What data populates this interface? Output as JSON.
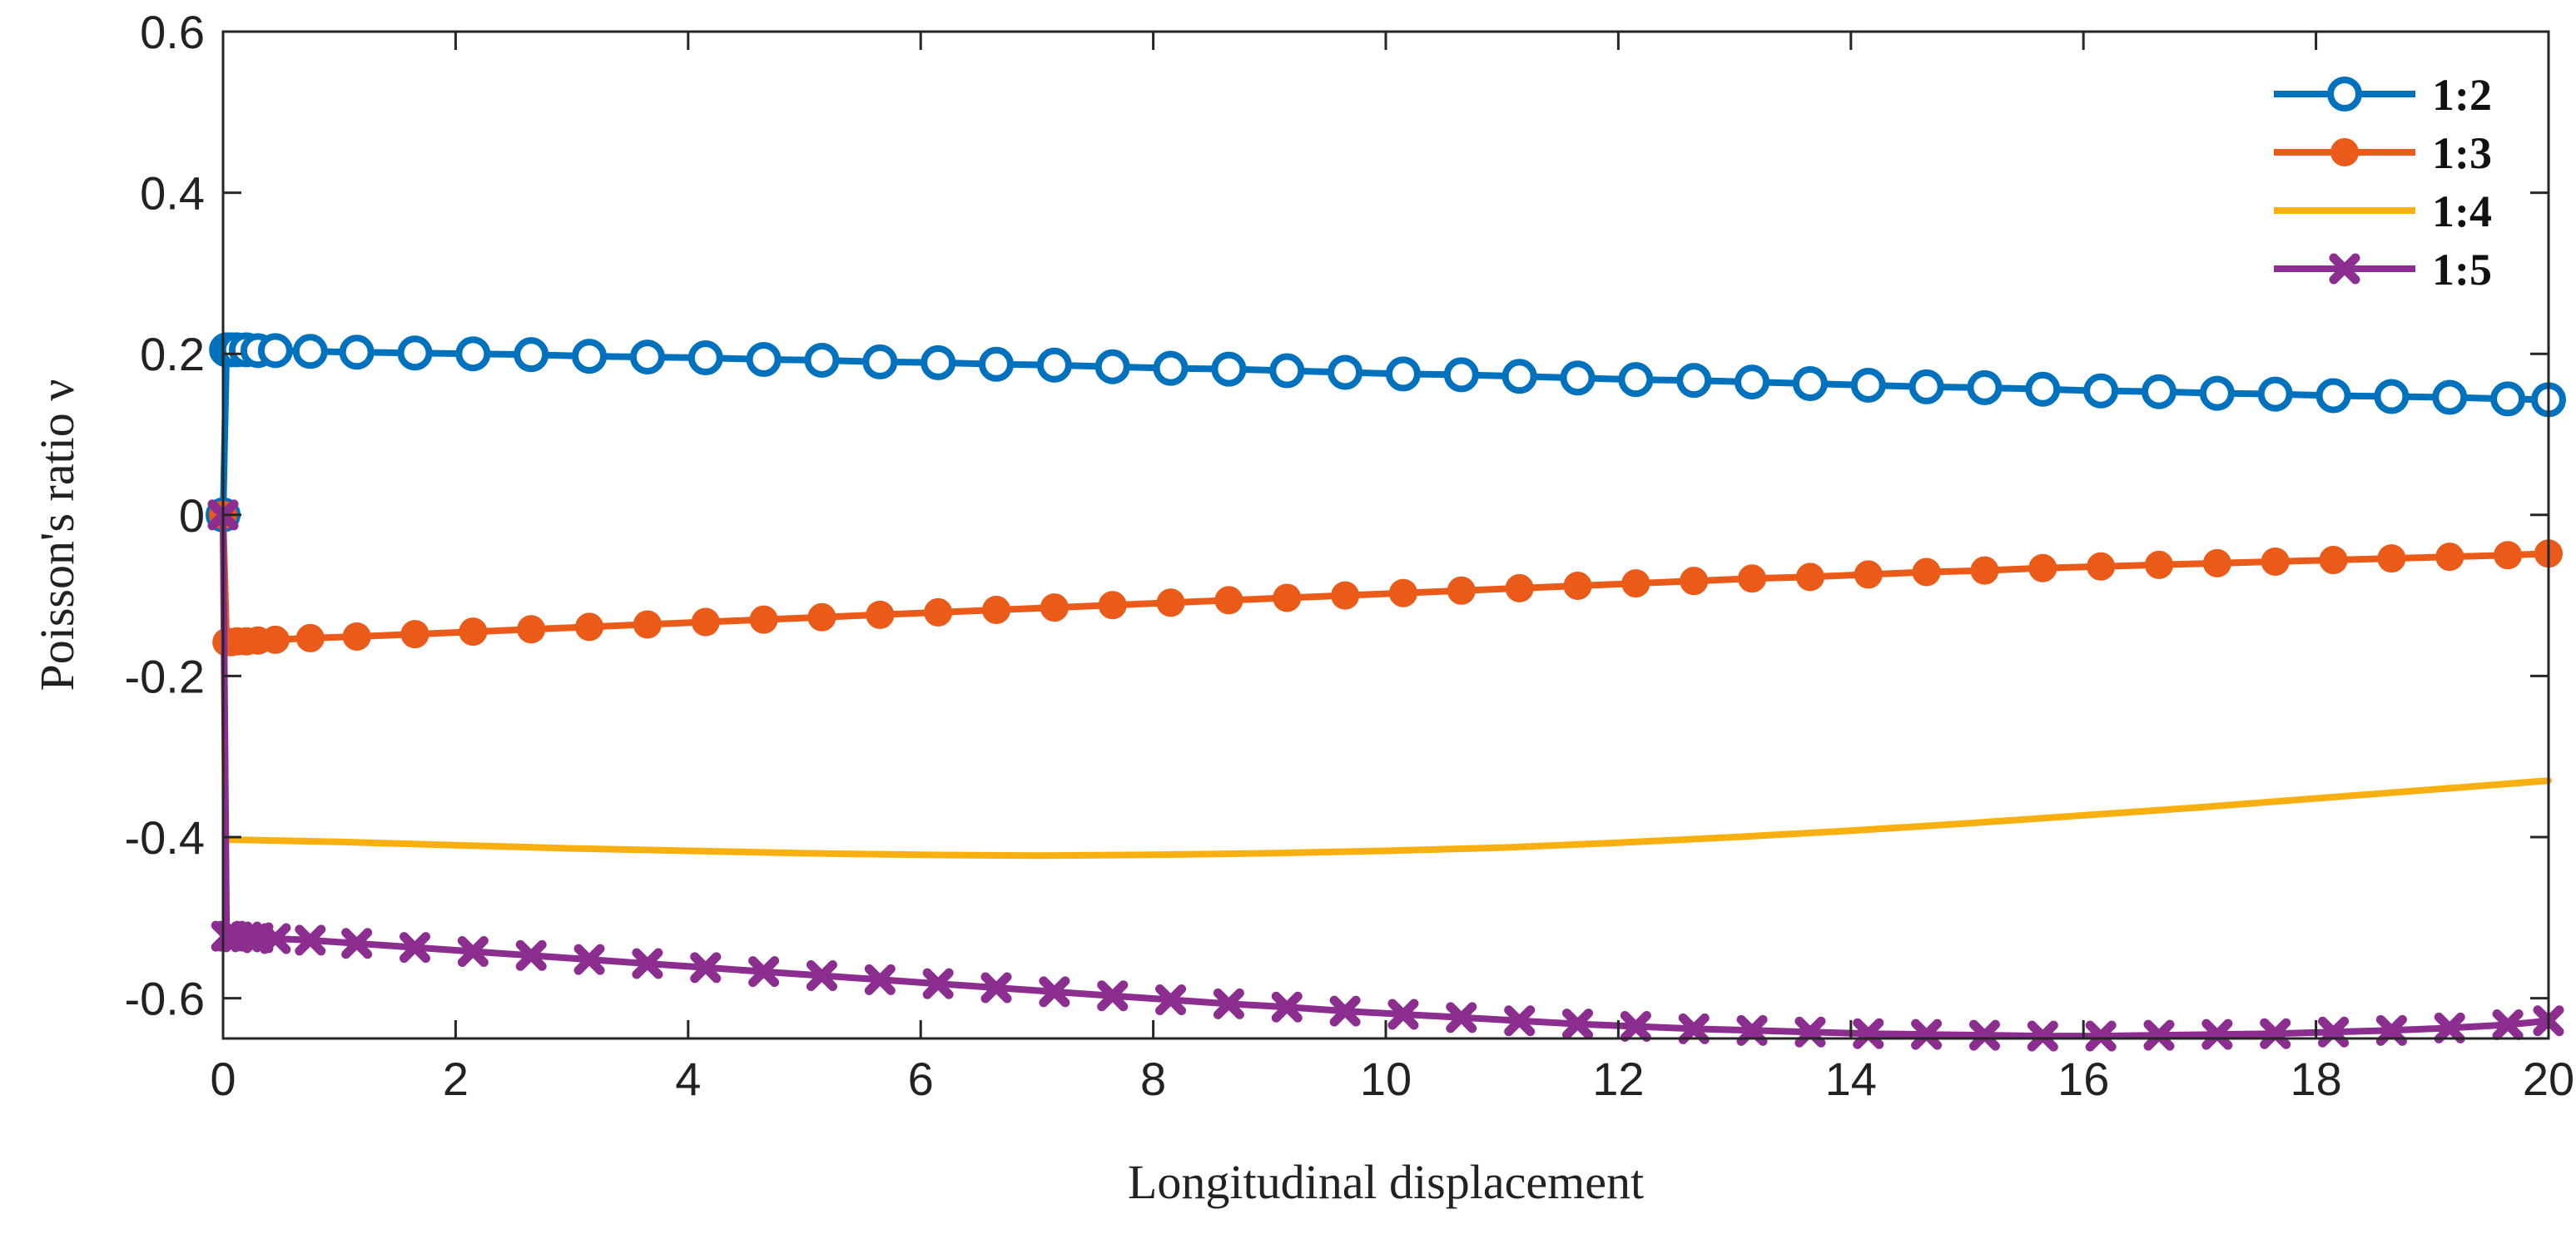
{
  "chart_data": {
    "type": "line",
    "title": "",
    "xlabel": "Longitudinal displacement",
    "ylabel": "Poisson's ratio ν",
    "xlim": [
      0,
      20
    ],
    "ylim": [
      -0.65,
      0.6
    ],
    "xticks": [
      0,
      2,
      4,
      6,
      8,
      10,
      12,
      14,
      16,
      18,
      20
    ],
    "yticks": [
      -0.6,
      -0.4,
      -0.2,
      0,
      0.2,
      0.4,
      0.6
    ],
    "xtick_labels": [
      "0",
      "2",
      "4",
      "6",
      "8",
      "10",
      "12",
      "14",
      "16",
      "18",
      "20"
    ],
    "ytick_labels": [
      "-0.6",
      "-0.4",
      "-0.2",
      "0",
      "0.2",
      "0.4",
      "0.6"
    ],
    "legend_position": "top-right",
    "grid": false,
    "series": [
      {
        "name": "1:2",
        "color": "#0072BD",
        "marker": "circle-open",
        "x": [
          0,
          0.03,
          0.07,
          0.12,
          0.2,
          0.3,
          0.45,
          0.75,
          1.15,
          1.65,
          2.15,
          2.65,
          3.15,
          3.65,
          4.15,
          4.65,
          5.15,
          5.65,
          6.15,
          6.65,
          7.15,
          7.65,
          8.15,
          8.65,
          9.15,
          9.65,
          10.15,
          10.65,
          11.15,
          11.65,
          12.15,
          12.65,
          13.15,
          13.65,
          14.15,
          14.65,
          15.15,
          15.65,
          16.15,
          16.65,
          17.15,
          17.65,
          18.15,
          18.65,
          19.15,
          19.65,
          20
        ],
        "y": [
          0,
          0.205,
          0.205,
          0.205,
          0.205,
          0.204,
          0.204,
          0.203,
          0.202,
          0.201,
          0.2,
          0.199,
          0.197,
          0.196,
          0.195,
          0.193,
          0.192,
          0.19,
          0.189,
          0.187,
          0.186,
          0.184,
          0.182,
          0.181,
          0.179,
          0.177,
          0.175,
          0.174,
          0.172,
          0.17,
          0.168,
          0.167,
          0.165,
          0.163,
          0.161,
          0.159,
          0.158,
          0.156,
          0.154,
          0.153,
          0.151,
          0.15,
          0.148,
          0.147,
          0.146,
          0.144,
          0.143
        ]
      },
      {
        "name": "1:3",
        "color": "#EA5B1A",
        "marker": "circle-filled",
        "x": [
          0,
          0.03,
          0.07,
          0.12,
          0.2,
          0.3,
          0.45,
          0.75,
          1.15,
          1.65,
          2.15,
          2.65,
          3.15,
          3.65,
          4.15,
          4.65,
          5.15,
          5.65,
          6.15,
          6.65,
          7.15,
          7.65,
          8.15,
          8.65,
          9.15,
          9.65,
          10.15,
          10.65,
          11.15,
          11.65,
          12.15,
          12.65,
          13.15,
          13.65,
          14.15,
          14.65,
          15.15,
          15.65,
          16.15,
          16.65,
          17.15,
          17.65,
          18.15,
          18.65,
          19.15,
          19.65,
          20
        ],
        "y": [
          0,
          -0.158,
          -0.158,
          -0.157,
          -0.157,
          -0.156,
          -0.155,
          -0.153,
          -0.151,
          -0.148,
          -0.145,
          -0.142,
          -0.139,
          -0.136,
          -0.133,
          -0.13,
          -0.127,
          -0.124,
          -0.121,
          -0.118,
          -0.115,
          -0.112,
          -0.109,
          -0.106,
          -0.103,
          -0.1,
          -0.097,
          -0.094,
          -0.091,
          -0.088,
          -0.085,
          -0.082,
          -0.079,
          -0.077,
          -0.074,
          -0.071,
          -0.069,
          -0.066,
          -0.064,
          -0.062,
          -0.06,
          -0.058,
          -0.056,
          -0.054,
          -0.052,
          -0.05,
          -0.048
        ]
      },
      {
        "name": "1:4",
        "color": "#F8B010",
        "marker": "none",
        "x": [
          0,
          0.02,
          1,
          2,
          3,
          4,
          5,
          6,
          7,
          8,
          9,
          10,
          11,
          12,
          13,
          14,
          15,
          16,
          17,
          18,
          19,
          20
        ],
        "y": [
          0,
          -0.403,
          -0.406,
          -0.41,
          -0.414,
          -0.417,
          -0.42,
          -0.422,
          -0.423,
          -0.422,
          -0.42,
          -0.417,
          -0.413,
          -0.407,
          -0.4,
          -0.392,
          -0.383,
          -0.373,
          -0.363,
          -0.352,
          -0.341,
          -0.33
        ]
      },
      {
        "name": "1:5",
        "color": "#8B2E8F",
        "marker": "x-filled",
        "x": [
          0,
          0.03,
          0.07,
          0.12,
          0.2,
          0.3,
          0.45,
          0.75,
          1.15,
          1.65,
          2.15,
          2.65,
          3.15,
          3.65,
          4.15,
          4.65,
          5.15,
          5.65,
          6.15,
          6.65,
          7.15,
          7.65,
          8.15,
          8.65,
          9.15,
          9.65,
          10.15,
          10.65,
          11.15,
          11.65,
          12.15,
          12.65,
          13.15,
          13.65,
          14.15,
          14.65,
          15.15,
          15.65,
          16.15,
          16.65,
          17.15,
          17.65,
          18.15,
          18.65,
          19.15,
          19.65,
          20
        ],
        "y": [
          0,
          -0.523,
          -0.523,
          -0.524,
          -0.524,
          -0.525,
          -0.526,
          -0.528,
          -0.532,
          -0.537,
          -0.542,
          -0.547,
          -0.552,
          -0.557,
          -0.562,
          -0.567,
          -0.572,
          -0.577,
          -0.582,
          -0.587,
          -0.592,
          -0.597,
          -0.602,
          -0.607,
          -0.611,
          -0.616,
          -0.62,
          -0.624,
          -0.628,
          -0.632,
          -0.635,
          -0.638,
          -0.64,
          -0.642,
          -0.644,
          -0.645,
          -0.646,
          -0.647,
          -0.647,
          -0.646,
          -0.645,
          -0.644,
          -0.642,
          -0.64,
          -0.637,
          -0.633,
          -0.628
        ]
      }
    ]
  }
}
